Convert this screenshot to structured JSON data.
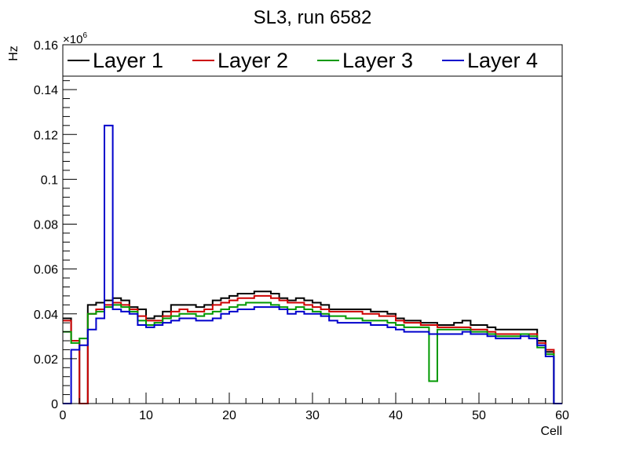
{
  "chart_data": {
    "type": "line",
    "title": "SL3, run 6582",
    "xlabel": "Cell",
    "ylabel": "Hz",
    "yscale_label": "×10",
    "yscale_exp": "6",
    "xlim": [
      0,
      60
    ],
    "ylim": [
      0,
      0.16
    ],
    "xticks": [
      0,
      10,
      20,
      30,
      40,
      50,
      60
    ],
    "yticks": [
      0,
      0.02,
      0.04,
      0.06,
      0.08,
      0.1,
      0.12,
      0.14,
      0.16
    ],
    "ytick_labels": [
      "0",
      "0.02",
      "0.04",
      "0.06",
      "0.08",
      "0.1",
      "0.12",
      "0.14",
      "0.16"
    ],
    "legend_position": "top",
    "series": [
      {
        "name": "Layer 1",
        "color": "#000000",
        "values": [
          0.038,
          0.028,
          0.0,
          0.044,
          0.045,
          0.046,
          0.047,
          0.046,
          0.043,
          0.042,
          0.038,
          0.039,
          0.041,
          0.044,
          0.044,
          0.044,
          0.043,
          0.044,
          0.046,
          0.047,
          0.048,
          0.049,
          0.049,
          0.05,
          0.05,
          0.049,
          0.047,
          0.046,
          0.047,
          0.046,
          0.045,
          0.044,
          0.042,
          0.042,
          0.042,
          0.042,
          0.042,
          0.041,
          0.041,
          0.04,
          0.038,
          0.037,
          0.037,
          0.036,
          0.036,
          0.035,
          0.035,
          0.036,
          0.037,
          0.035,
          0.035,
          0.034,
          0.033,
          0.033,
          0.033,
          0.033,
          0.033,
          0.028,
          0.023,
          0.0
        ]
      },
      {
        "name": "Layer 2",
        "color": "#cc0000",
        "values": [
          0.037,
          0.028,
          0.0,
          0.04,
          0.042,
          0.044,
          0.045,
          0.044,
          0.042,
          0.039,
          0.037,
          0.037,
          0.039,
          0.041,
          0.042,
          0.041,
          0.041,
          0.042,
          0.044,
          0.045,
          0.046,
          0.047,
          0.047,
          0.048,
          0.048,
          0.047,
          0.046,
          0.045,
          0.045,
          0.044,
          0.043,
          0.042,
          0.041,
          0.041,
          0.041,
          0.041,
          0.04,
          0.04,
          0.039,
          0.039,
          0.037,
          0.036,
          0.036,
          0.035,
          0.035,
          0.034,
          0.034,
          0.034,
          0.034,
          0.033,
          0.033,
          0.032,
          0.031,
          0.031,
          0.031,
          0.031,
          0.031,
          0.027,
          0.024,
          0.0
        ]
      },
      {
        "name": "Layer 3",
        "color": "#009900",
        "values": [
          0.032,
          0.027,
          0.029,
          0.04,
          0.041,
          0.043,
          0.044,
          0.043,
          0.041,
          0.037,
          0.035,
          0.036,
          0.038,
          0.039,
          0.04,
          0.04,
          0.039,
          0.04,
          0.041,
          0.042,
          0.043,
          0.044,
          0.045,
          0.045,
          0.045,
          0.044,
          0.043,
          0.042,
          0.043,
          0.042,
          0.041,
          0.04,
          0.039,
          0.039,
          0.038,
          0.038,
          0.037,
          0.037,
          0.037,
          0.036,
          0.035,
          0.034,
          0.034,
          0.034,
          0.01,
          0.033,
          0.033,
          0.033,
          0.033,
          0.032,
          0.032,
          0.031,
          0.03,
          0.03,
          0.03,
          0.031,
          0.03,
          0.025,
          0.022,
          0.0
        ]
      },
      {
        "name": "Layer 4",
        "color": "#0000cc",
        "values": [
          0.0,
          0.024,
          0.026,
          0.033,
          0.038,
          0.124,
          0.042,
          0.041,
          0.04,
          0.035,
          0.034,
          0.035,
          0.036,
          0.037,
          0.038,
          0.038,
          0.037,
          0.037,
          0.038,
          0.04,
          0.041,
          0.042,
          0.042,
          0.043,
          0.043,
          0.043,
          0.042,
          0.04,
          0.041,
          0.04,
          0.04,
          0.039,
          0.037,
          0.036,
          0.036,
          0.036,
          0.036,
          0.035,
          0.035,
          0.034,
          0.033,
          0.032,
          0.032,
          0.032,
          0.031,
          0.031,
          0.031,
          0.031,
          0.032,
          0.031,
          0.031,
          0.03,
          0.029,
          0.029,
          0.029,
          0.03,
          0.029,
          0.026,
          0.021,
          0.0
        ]
      }
    ]
  }
}
